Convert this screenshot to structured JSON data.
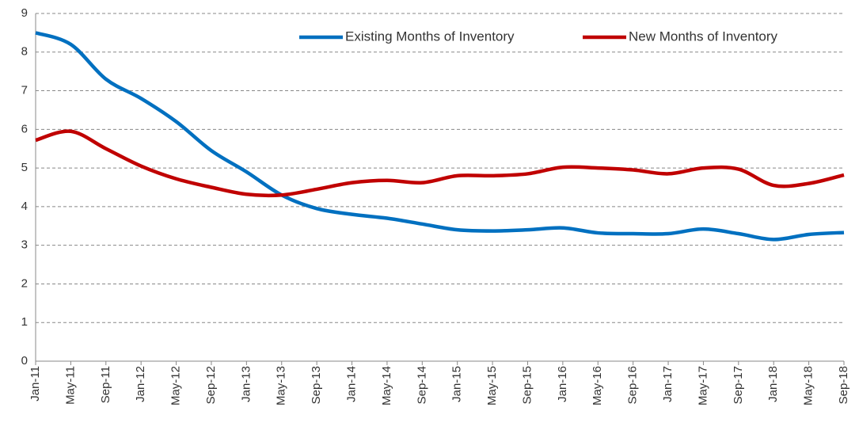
{
  "chart_data": {
    "type": "line",
    "categories": [
      "Jan-11",
      "May-11",
      "Sep-11",
      "Jan-12",
      "May-12",
      "Sep-12",
      "Jan-13",
      "May-13",
      "Sep-13",
      "Jan-14",
      "May-14",
      "Sep-14",
      "Jan-15",
      "May-15",
      "Sep-15",
      "Jan-16",
      "May-16",
      "Sep-16",
      "Jan-17",
      "May-17",
      "Sep-17",
      "Jan-18",
      "May-18",
      "Sep-18"
    ],
    "series": [
      {
        "name": "Existing Months of Inventory",
        "color": "#0070c0",
        "values": [
          8.5,
          8.2,
          7.3,
          6.8,
          6.2,
          5.45,
          4.9,
          4.3,
          3.95,
          3.8,
          3.7,
          3.55,
          3.4,
          3.37,
          3.4,
          3.45,
          3.32,
          3.3,
          3.3,
          3.42,
          3.3,
          3.15,
          3.28,
          3.33
        ]
      },
      {
        "name": "New Months of Inventory",
        "color": "#c00000",
        "values": [
          5.72,
          5.95,
          5.5,
          5.05,
          4.72,
          4.5,
          4.32,
          4.3,
          4.45,
          4.62,
          4.68,
          4.62,
          4.8,
          4.8,
          4.85,
          5.02,
          5.0,
          4.95,
          4.85,
          5.0,
          4.97,
          4.55,
          4.6,
          4.82
        ]
      }
    ],
    "ylim": [
      0,
      9
    ],
    "yticks": [
      0,
      1,
      2,
      3,
      4,
      5,
      6,
      7,
      8,
      9
    ],
    "grid": true
  }
}
